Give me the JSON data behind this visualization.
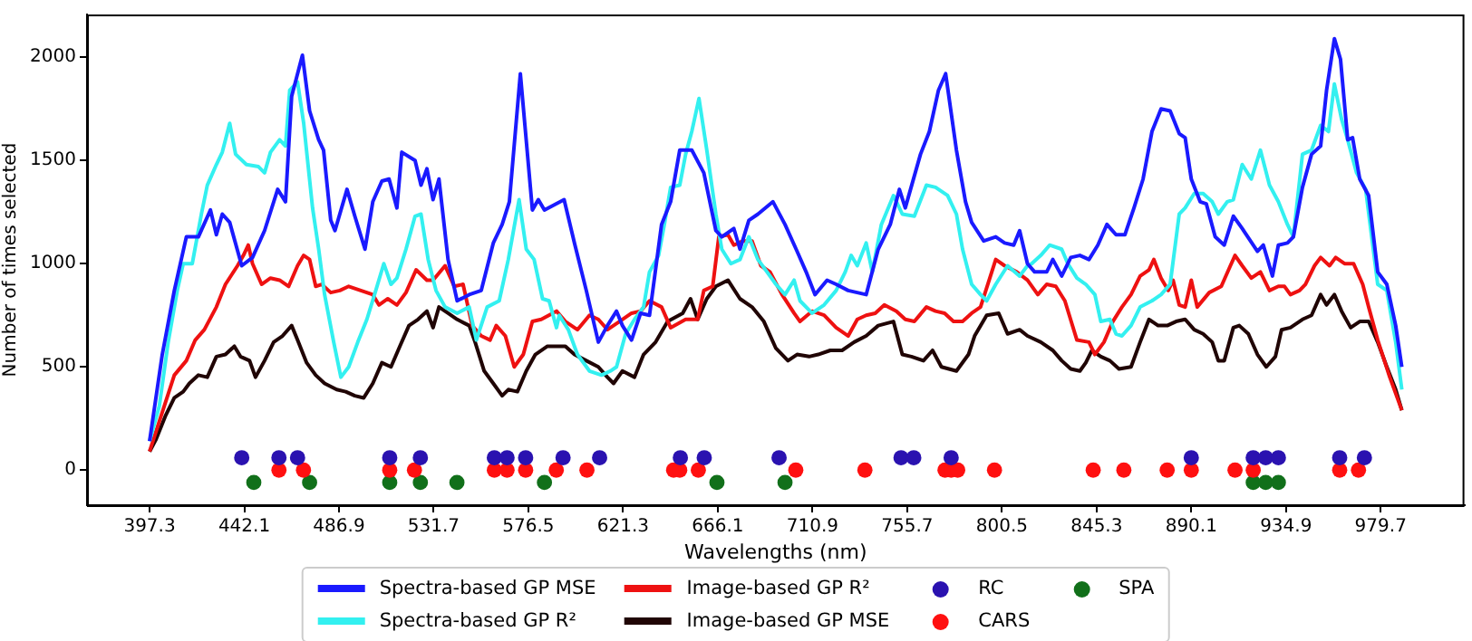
{
  "chart_data": {
    "type": "line",
    "xlabel": "Wavelengths (nm)",
    "ylabel": "Number of times selected",
    "xlim": [
      367.7,
      1019.3
    ],
    "xticks": [
      397.3,
      442.1,
      486.9,
      531.7,
      576.5,
      621.3,
      666.1,
      710.9,
      755.7,
      800.5,
      845.3,
      890.1,
      934.9,
      979.7
    ],
    "ylim": [
      -170,
      2207
    ],
    "yticks": [
      0,
      500,
      1000,
      1500,
      2000
    ],
    "grid": false,
    "legend": "bottom",
    "series": [
      {
        "name": "Spectra-based GP MSE",
        "color": "#1a1aff",
        "x": [
          397.3,
          403.3,
          409.0,
          414.7,
          420.4,
          426.1,
          428.9,
          431.7,
          435.2,
          440.9,
          446.0,
          451.7,
          457.9,
          461.6,
          464.5,
          469.6,
          473.0,
          477.3,
          479.6,
          483.0,
          485.0,
          490.7,
          494.4,
          499.2,
          502.9,
          507.2,
          510.6,
          514.3,
          516.6,
          522.9,
          525.7,
          528.5,
          531.4,
          534.2,
          538.5,
          542.8,
          548.5,
          554.2,
          559.9,
          564.1,
          567.5,
          572.7,
          578.4,
          581.2,
          584.1,
          593.4,
          598.3,
          603.9,
          609.6,
          613.9,
          618.2,
          621.0,
          625.3,
          629.6,
          633.8,
          639.5,
          643.8,
          648.1,
          653.8,
          659.5,
          665.2,
          668.0,
          673.7,
          676.6,
          680.8,
          685.1,
          692.2,
          697.9,
          703.6,
          707.9,
          712.1,
          717.8,
          722.1,
          727.8,
          736.3,
          742.0,
          747.7,
          752.0,
          754.8,
          762.0,
          766.2,
          770.5,
          773.9,
          779.0,
          783.3,
          786.2,
          791.9,
          797.6,
          801.8,
          806.1,
          808.9,
          812.6,
          816.0,
          821.7,
          824.6,
          828.8,
          833.1,
          837.4,
          841.7,
          845.9,
          850.2,
          854.5,
          858.7,
          863.0,
          867.3,
          871.5,
          875.8,
          880.1,
          884.4,
          887.2,
          890.1,
          894.3,
          897.2,
          901.4,
          905.7,
          910.0,
          914.2,
          921.4,
          924.2,
          928.5,
          931.3,
          935.6,
          938.4,
          942.7,
          947.0,
          951.3,
          954.1,
          957.8,
          960.7,
          964.1,
          966.4,
          969.8,
          974.0,
          978.3,
          982.6,
          986.8,
          989.7
        ],
        "values": [
          140,
          560,
          870,
          1130,
          1130,
          1260,
          1140,
          1240,
          1200,
          990,
          1030,
          1160,
          1360,
          1300,
          1810,
          2010,
          1740,
          1600,
          1550,
          1210,
          1160,
          1360,
          1230,
          1070,
          1300,
          1400,
          1410,
          1270,
          1540,
          1500,
          1380,
          1460,
          1310,
          1410,
          1020,
          820,
          850,
          870,
          1100,
          1190,
          1300,
          1920,
          1260,
          1310,
          1260,
          1310,
          1100,
          870,
          620,
          700,
          770,
          700,
          630,
          760,
          750,
          1190,
          1300,
          1550,
          1550,
          1440,
          1160,
          1130,
          1170,
          1070,
          1210,
          1240,
          1300,
          1190,
          1060,
          960,
          850,
          920,
          900,
          870,
          850,
          1070,
          1190,
          1360,
          1270,
          1530,
          1640,
          1840,
          1920,
          1550,
          1300,
          1200,
          1110,
          1130,
          1100,
          1090,
          1160,
          1000,
          960,
          960,
          1020,
          940,
          1030,
          1040,
          1020,
          1090,
          1190,
          1140,
          1140,
          1270,
          1410,
          1640,
          1750,
          1740,
          1630,
          1610,
          1410,
          1300,
          1290,
          1130,
          1090,
          1230,
          1170,
          1060,
          1090,
          940,
          1090,
          1100,
          1130,
          1370,
          1530,
          1570,
          1840,
          2090,
          1990,
          1600,
          1610,
          1410,
          1330,
          960,
          900,
          700,
          500
        ]
      },
      {
        "name": "Spectra-based GP R²",
        "color": "#33f0f0",
        "x": [
          397.3,
          401.9,
          406.1,
          410.4,
          413.2,
          417.5,
          421.8,
          424.6,
          428.9,
          431.7,
          435.2,
          438.0,
          443.1,
          448.8,
          451.7,
          454.5,
          458.8,
          461.6,
          463.6,
          467.3,
          470.2,
          474.4,
          477.3,
          480.1,
          484.4,
          487.8,
          491.5,
          495.8,
          500.1,
          504.3,
          508.1,
          511.5,
          514.3,
          518.6,
          522.9,
          525.7,
          529.1,
          532.8,
          537.1,
          542.8,
          548.5,
          551.9,
          557.0,
          562.7,
          567.0,
          572.1,
          575.5,
          579.2,
          583.2,
          586.3,
          589.8,
          591.1,
          595.4,
          599.7,
          605.4,
          611.1,
          615.3,
          618.2,
          622.5,
          626.7,
          631.0,
          633.8,
          638.1,
          641.0,
          643.8,
          648.1,
          650.9,
          653.8,
          657.2,
          660.9,
          665.2,
          668.0,
          672.3,
          676.6,
          680.8,
          685.1,
          689.4,
          693.6,
          697.9,
          702.2,
          705.0,
          710.7,
          716.4,
          722.1,
          726.4,
          729.2,
          732.1,
          736.3,
          739.2,
          743.5,
          749.2,
          753.4,
          759.1,
          764.8,
          769.1,
          774.8,
          779.0,
          781.9,
          786.2,
          790.4,
          793.3,
          797.6,
          803.2,
          808.9,
          812.6,
          814.6,
          818.9,
          823.1,
          828.8,
          831.7,
          836.0,
          840.2,
          844.5,
          847.3,
          851.6,
          854.5,
          857.3,
          861.6,
          865.9,
          871.5,
          875.8,
          880.1,
          884.4,
          887.2,
          891.5,
          895.7,
          900.0,
          902.9,
          907.1,
          910.0,
          914.2,
          918.5,
          922.8,
          927.1,
          931.3,
          935.6,
          938.4,
          942.7,
          947.0,
          951.3,
          955.0,
          957.8,
          961.2,
          964.1,
          968.3,
          972.6,
          978.3,
          982.6,
          986.8,
          989.7
        ],
        "values": [
          140,
          310,
          620,
          870,
          1000,
          1000,
          1240,
          1380,
          1480,
          1540,
          1680,
          1530,
          1480,
          1470,
          1440,
          1540,
          1600,
          1570,
          1840,
          1880,
          1680,
          1270,
          1070,
          850,
          620,
          450,
          500,
          620,
          730,
          870,
          1000,
          900,
          930,
          1070,
          1230,
          1240,
          1020,
          870,
          790,
          760,
          790,
          630,
          790,
          820,
          1020,
          1310,
          1070,
          1020,
          830,
          820,
          690,
          750,
          680,
          560,
          480,
          460,
          480,
          500,
          660,
          730,
          790,
          960,
          1040,
          1200,
          1370,
          1380,
          1530,
          1640,
          1800,
          1550,
          1240,
          1070,
          1000,
          1020,
          1130,
          1020,
          960,
          900,
          850,
          920,
          820,
          760,
          800,
          870,
          960,
          1040,
          990,
          1100,
          960,
          1190,
          1330,
          1240,
          1230,
          1380,
          1370,
          1330,
          1240,
          1070,
          900,
          850,
          820,
          900,
          990,
          940,
          990,
          1000,
          1040,
          1090,
          1070,
          1000,
          930,
          900,
          850,
          720,
          730,
          660,
          650,
          700,
          790,
          820,
          850,
          900,
          1240,
          1270,
          1340,
          1340,
          1300,
          1240,
          1300,
          1310,
          1480,
          1410,
          1550,
          1380,
          1300,
          1190,
          1130,
          1530,
          1550,
          1670,
          1640,
          1870,
          1700,
          1600,
          1440,
          1360,
          900,
          870,
          620,
          390
        ]
      },
      {
        "name": "Image-based GP R²",
        "color": "#ee1111",
        "x": [
          397.3,
          403.3,
          409.0,
          414.7,
          418.9,
          423.2,
          428.9,
          433.2,
          438.9,
          441.7,
          444.0,
          446.0,
          450.3,
          454.5,
          458.8,
          463.1,
          467.3,
          470.2,
          473.0,
          475.9,
          478.7,
          483.0,
          487.3,
          491.5,
          497.2,
          502.9,
          505.8,
          510.0,
          514.3,
          518.6,
          523.4,
          528.5,
          531.4,
          537.1,
          541.4,
          545.6,
          549.9,
          554.2,
          558.4,
          561.3,
          565.6,
          569.8,
          574.1,
          578.4,
          582.6,
          589.8,
          594.0,
          599.7,
          605.4,
          609.6,
          613.9,
          619.6,
          625.3,
          629.6,
          633.8,
          639.5,
          643.8,
          650.9,
          656.6,
          659.5,
          663.7,
          666.6,
          670.9,
          673.7,
          678.0,
          682.3,
          686.5,
          690.8,
          696.5,
          702.2,
          705.0,
          710.7,
          716.4,
          722.1,
          727.8,
          732.1,
          736.3,
          740.6,
          744.9,
          750.6,
          754.8,
          759.1,
          764.8,
          769.1,
          773.4,
          777.6,
          781.9,
          786.2,
          790.4,
          797.6,
          801.8,
          807.5,
          812.6,
          817.5,
          821.7,
          826.0,
          830.3,
          836.0,
          841.7,
          844.5,
          848.8,
          853.0,
          857.3,
          861.6,
          865.9,
          870.1,
          872.4,
          875.8,
          879.2,
          881.5,
          884.4,
          887.2,
          890.1,
          892.9,
          898.6,
          904.3,
          908.6,
          910.8,
          914.2,
          918.5,
          922.8,
          927.1,
          931.3,
          934.2,
          937.0,
          941.3,
          944.1,
          948.4,
          951.3,
          955.5,
          958.4,
          962.6,
          966.9,
          971.2,
          974.0,
          978.3,
          984.0,
          989.7
        ],
        "values": [
          90,
          280,
          460,
          530,
          630,
          680,
          790,
          900,
          990,
          1040,
          1090,
          1000,
          900,
          930,
          920,
          890,
          990,
          1040,
          1020,
          890,
          900,
          860,
          870,
          890,
          870,
          850,
          800,
          830,
          800,
          860,
          970,
          920,
          920,
          990,
          890,
          900,
          700,
          650,
          630,
          700,
          650,
          500,
          560,
          720,
          730,
          770,
          720,
          680,
          750,
          730,
          680,
          720,
          760,
          770,
          820,
          790,
          690,
          730,
          730,
          870,
          890,
          1130,
          1140,
          1090,
          1110,
          1110,
          990,
          960,
          850,
          760,
          720,
          770,
          750,
          690,
          650,
          730,
          750,
          760,
          800,
          770,
          730,
          720,
          790,
          770,
          760,
          720,
          720,
          760,
          790,
          1020,
          990,
          960,
          920,
          850,
          900,
          890,
          820,
          630,
          620,
          560,
          620,
          720,
          790,
          850,
          940,
          970,
          1020,
          930,
          870,
          920,
          800,
          790,
          920,
          790,
          860,
          890,
          990,
          1040,
          990,
          930,
          960,
          870,
          890,
          890,
          850,
          870,
          900,
          990,
          1030,
          990,
          1030,
          1000,
          1000,
          900,
          790,
          630,
          450,
          290
        ]
      },
      {
        "name": "Image-based GP MSE",
        "color": "#200505",
        "x": [
          397.3,
          400.4,
          404.7,
          409.0,
          413.2,
          416.1,
          420.4,
          424.6,
          428.9,
          433.2,
          437.4,
          440.3,
          444.6,
          447.4,
          451.7,
          456.0,
          460.2,
          464.5,
          467.3,
          471.6,
          475.9,
          480.1,
          485.8,
          490.1,
          494.4,
          498.6,
          502.9,
          507.2,
          511.5,
          515.7,
          520.0,
          524.3,
          528.5,
          531.4,
          534.2,
          538.5,
          542.8,
          548.5,
          551.3,
          555.6,
          559.9,
          564.1,
          567.0,
          571.3,
          575.5,
          579.8,
          585.5,
          594.0,
          598.3,
          603.9,
          609.6,
          613.9,
          616.8,
          621.0,
          626.7,
          631.0,
          636.7,
          642.4,
          649.5,
          653.2,
          656.6,
          660.9,
          665.2,
          670.9,
          676.6,
          682.3,
          687.9,
          693.6,
          699.3,
          703.6,
          709.3,
          713.6,
          719.3,
          724.9,
          730.6,
          736.3,
          742.0,
          749.2,
          753.4,
          757.7,
          763.4,
          767.7,
          771.9,
          779.0,
          784.7,
          787.6,
          793.3,
          799.0,
          803.2,
          808.9,
          812.6,
          818.9,
          824.6,
          828.8,
          833.1,
          837.4,
          840.2,
          843.1,
          847.3,
          851.6,
          855.9,
          861.6,
          865.9,
          870.1,
          874.4,
          878.7,
          882.9,
          887.2,
          891.5,
          895.7,
          900.0,
          902.9,
          905.7,
          910.0,
          912.8,
          917.1,
          921.4,
          925.6,
          929.9,
          932.8,
          937.0,
          942.7,
          947.0,
          951.3,
          954.1,
          957.8,
          961.2,
          965.5,
          969.8,
          974.0,
          978.3,
          982.6,
          986.8,
          989.7
        ],
        "values": [
          90,
          150,
          260,
          350,
          380,
          420,
          460,
          450,
          550,
          560,
          600,
          550,
          530,
          450,
          530,
          620,
          650,
          700,
          630,
          520,
          460,
          420,
          390,
          380,
          360,
          350,
          420,
          520,
          500,
          600,
          700,
          730,
          770,
          690,
          790,
          760,
          730,
          700,
          620,
          480,
          420,
          360,
          390,
          380,
          480,
          560,
          600,
          600,
          560,
          530,
          500,
          450,
          420,
          480,
          450,
          560,
          620,
          720,
          760,
          830,
          730,
          830,
          890,
          920,
          830,
          790,
          720,
          590,
          530,
          560,
          550,
          560,
          580,
          580,
          620,
          650,
          700,
          720,
          560,
          550,
          530,
          580,
          500,
          480,
          560,
          650,
          750,
          760,
          660,
          680,
          650,
          620,
          580,
          530,
          490,
          480,
          520,
          580,
          550,
          530,
          490,
          500,
          620,
          730,
          700,
          700,
          720,
          730,
          680,
          660,
          620,
          530,
          530,
          690,
          700,
          660,
          560,
          500,
          550,
          680,
          690,
          730,
          750,
          850,
          800,
          850,
          770,
          690,
          720,
          720,
          620,
          500,
          390,
          290
        ]
      },
      {
        "name": "RC",
        "type": "scatter",
        "marker": "circle",
        "color": "#2a12b0",
        "x": [
          440.9,
          458.5,
          467.3,
          510.9,
          525.4,
          560.4,
          566.4,
          575.2,
          592.9,
          610.2,
          648.4,
          659.7,
          695.1,
          752.8,
          758.8,
          776.5,
          890.1,
          919.4,
          925.3,
          931.3,
          960.3,
          972.0
        ],
        "values": [
          60,
          60,
          60,
          60,
          60,
          60,
          60,
          60,
          60,
          60,
          60,
          60,
          60,
          60,
          60,
          60,
          60,
          60,
          60,
          60,
          60,
          60
        ]
      },
      {
        "name": "CARS",
        "type": "scatter",
        "marker": "circle",
        "color": "#ff1010",
        "x": [
          458.5,
          470.1,
          510.9,
          522.6,
          560.4,
          566.4,
          575.2,
          589.7,
          604.2,
          645.2,
          648.1,
          656.9,
          703.0,
          735.7,
          773.6,
          776.5,
          779.6,
          797.0,
          843.7,
          858.2,
          878.7,
          890.1,
          910.8,
          919.4,
          960.3,
          969.2
        ],
        "values": [
          0,
          0,
          0,
          0,
          0,
          0,
          0,
          0,
          0,
          0,
          0,
          0,
          0,
          0,
          0,
          0,
          0,
          0,
          0,
          0,
          0,
          0,
          0,
          0,
          0,
          0
        ]
      },
      {
        "name": "SPA",
        "type": "scatter",
        "marker": "circle",
        "color": "#11701a",
        "x": [
          446.6,
          473.0,
          510.9,
          525.4,
          542.7,
          584.1,
          665.7,
          697.9,
          919.4,
          925.3,
          931.3
        ],
        "values": [
          -60,
          -60,
          -60,
          -60,
          -60,
          -60,
          -60,
          -60,
          -60,
          -60,
          -60
        ]
      }
    ]
  }
}
